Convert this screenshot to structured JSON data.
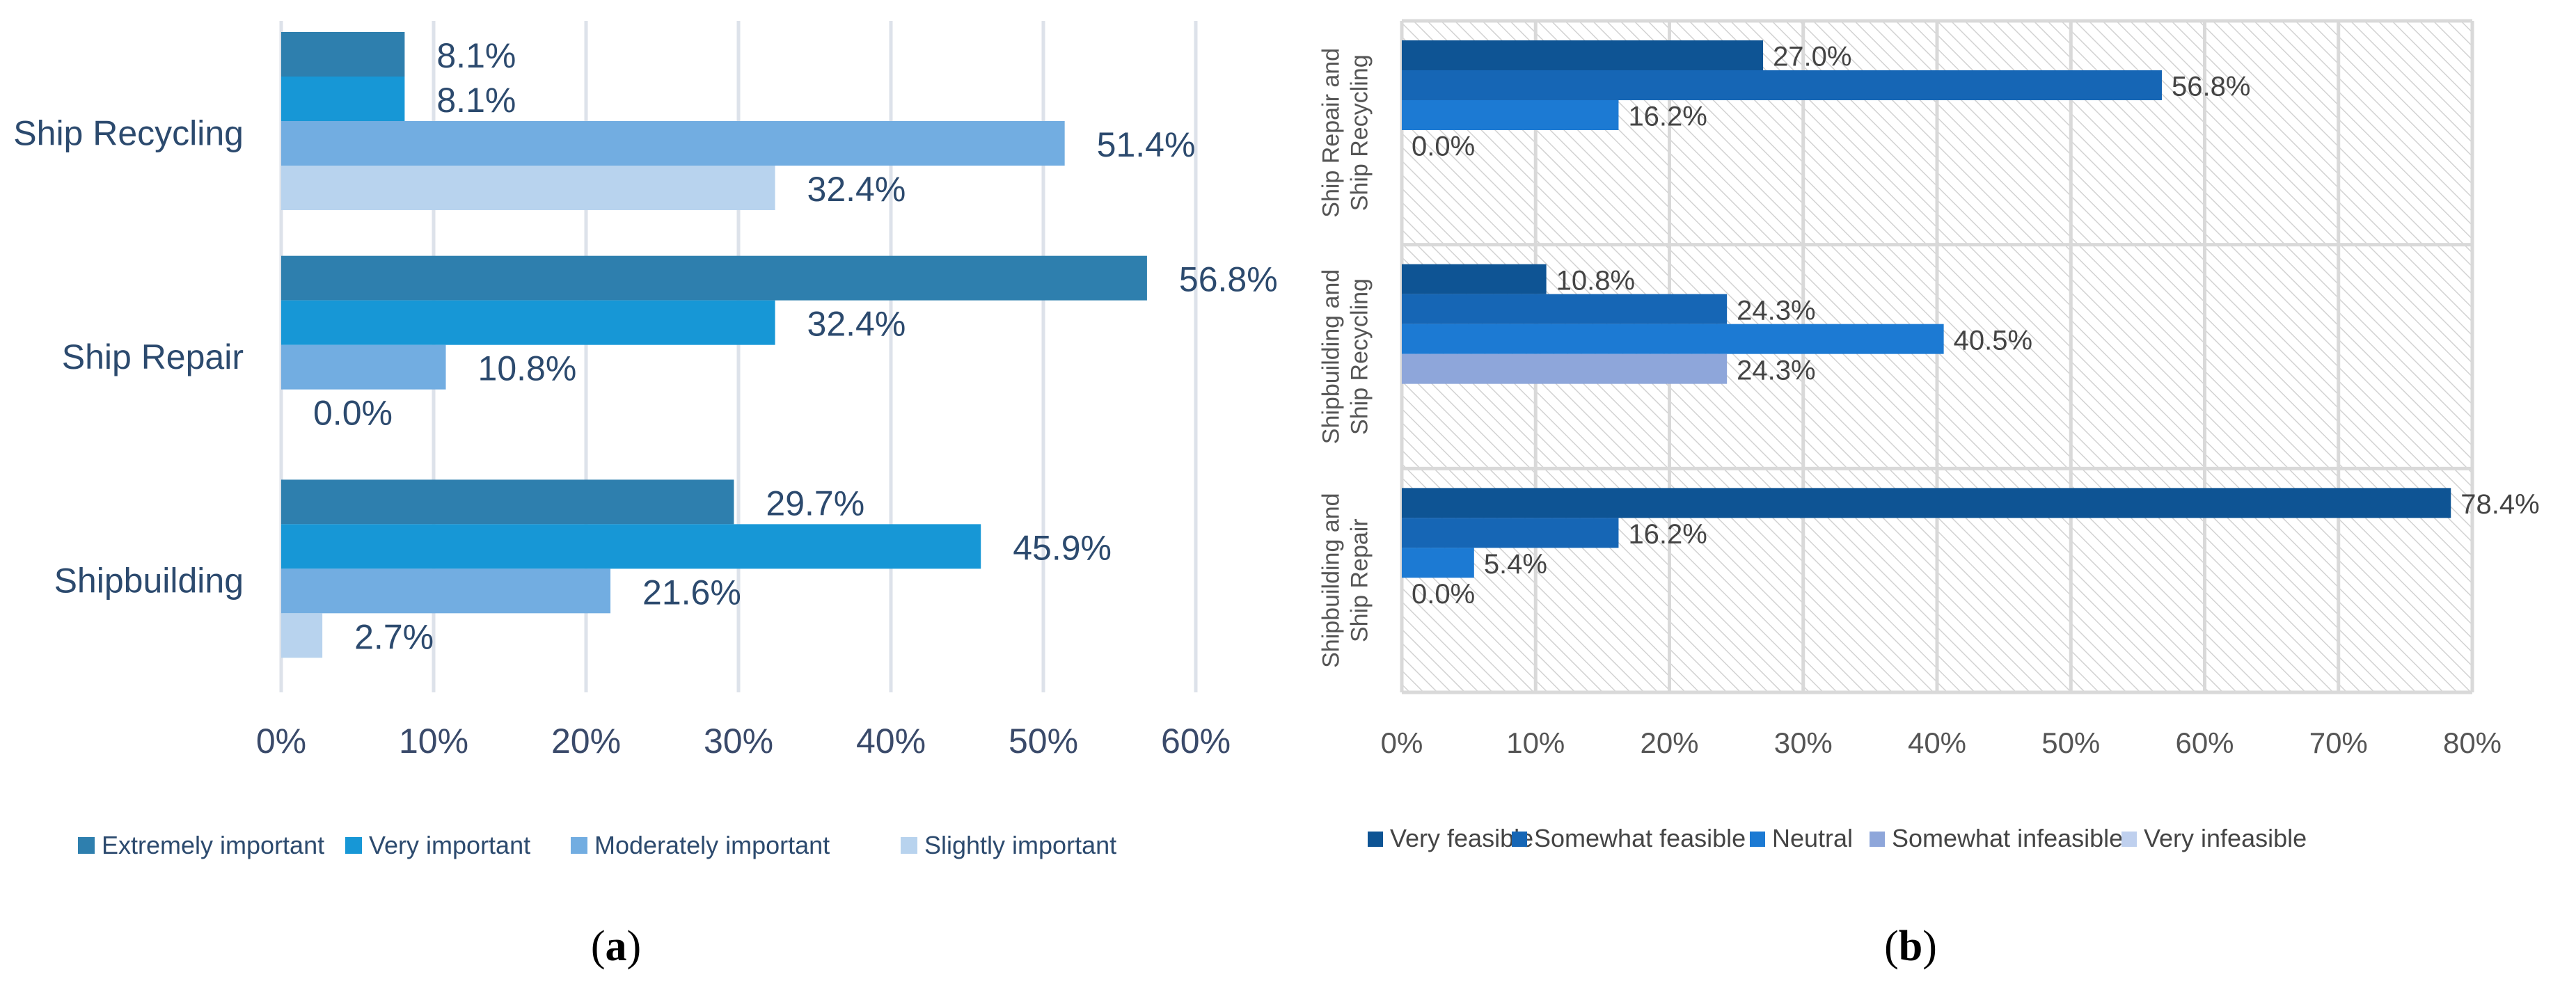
{
  "chart_data": [
    {
      "type": "bar",
      "orientation": "horizontal",
      "caption_open": "(",
      "caption_letter": "a",
      "caption_close": ")",
      "title": "",
      "xlabel": "",
      "ylabel": "",
      "categories": [
        "Ship Recycling",
        "Ship Repair",
        "Shipbuilding"
      ],
      "series": [
        {
          "name": "Extremely important",
          "color": "#2E7FAE",
          "values": [
            8.1,
            56.8,
            29.7
          ],
          "labels": [
            "8.1%",
            "56.8%",
            "29.7%"
          ]
        },
        {
          "name": "Very important",
          "color": "#1797D6",
          "values": [
            8.1,
            32.4,
            45.9
          ],
          "labels": [
            "8.1%",
            "32.4%",
            "45.9%"
          ]
        },
        {
          "name": "Moderately important",
          "color": "#72ADE1",
          "values": [
            51.4,
            10.8,
            21.6
          ],
          "labels": [
            "51.4%",
            "10.8%",
            "21.6%"
          ]
        },
        {
          "name": "Slightly important",
          "color": "#B8D3EE",
          "values": [
            32.4,
            0.0,
            2.7
          ],
          "labels": [
            "32.4%",
            "0.0%",
            "2.7%"
          ]
        }
      ],
      "xlim": [
        0,
        60
      ],
      "ticks": [
        0,
        10,
        20,
        30,
        40,
        50,
        60
      ],
      "tick_labels": [
        "0%",
        "10%",
        "20%",
        "30%",
        "40%",
        "50%",
        "60%"
      ],
      "grid": true,
      "legend": "bottom"
    },
    {
      "type": "bar",
      "orientation": "horizontal",
      "caption_open": "(",
      "caption_letter": "b",
      "caption_close": ")",
      "title": "",
      "xlabel": "",
      "ylabel": "",
      "categories": [
        [
          "Ship Repair and",
          "Ship Recycling"
        ],
        [
          "Shipbuilding and",
          "Ship Recycling"
        ],
        [
          "Shipbuilding and",
          "Ship Repair"
        ]
      ],
      "series": [
        {
          "name": "Very feasible",
          "color": "#0E5494",
          "values": [
            27.0,
            10.8,
            78.4
          ],
          "labels": [
            "27.0%",
            "10.8%",
            "78.4%"
          ]
        },
        {
          "name": "Somewhat feasible",
          "color": "#1666B5",
          "values": [
            56.8,
            24.3,
            16.2
          ],
          "labels": [
            "56.8%",
            "24.3%",
            "16.2%"
          ]
        },
        {
          "name": "Neutral",
          "color": "#1C7AD3",
          "values": [
            16.2,
            40.5,
            5.4
          ],
          "labels": [
            "16.2%",
            "40.5%",
            "5.4%"
          ]
        },
        {
          "name": "Somewhat infeasible",
          "color": "#8EA6DA",
          "values": [
            0.0,
            24.3,
            0.0
          ],
          "labels": [
            "0.0%",
            "24.3%",
            "0.0%"
          ]
        },
        {
          "name": "Very infeasible",
          "color": "#BFD0EE",
          "values": [
            0,
            0,
            0
          ],
          "labels": []
        }
      ],
      "xlim": [
        0,
        80
      ],
      "ticks": [
        0,
        10,
        20,
        30,
        40,
        50,
        60,
        70,
        80
      ],
      "tick_labels": [
        "0%",
        "10%",
        "20%",
        "30%",
        "40%",
        "50%",
        "60%",
        "70%",
        "80%"
      ],
      "grid": true,
      "plot_background": "diagonal-hatch",
      "legend": "bottom"
    }
  ]
}
